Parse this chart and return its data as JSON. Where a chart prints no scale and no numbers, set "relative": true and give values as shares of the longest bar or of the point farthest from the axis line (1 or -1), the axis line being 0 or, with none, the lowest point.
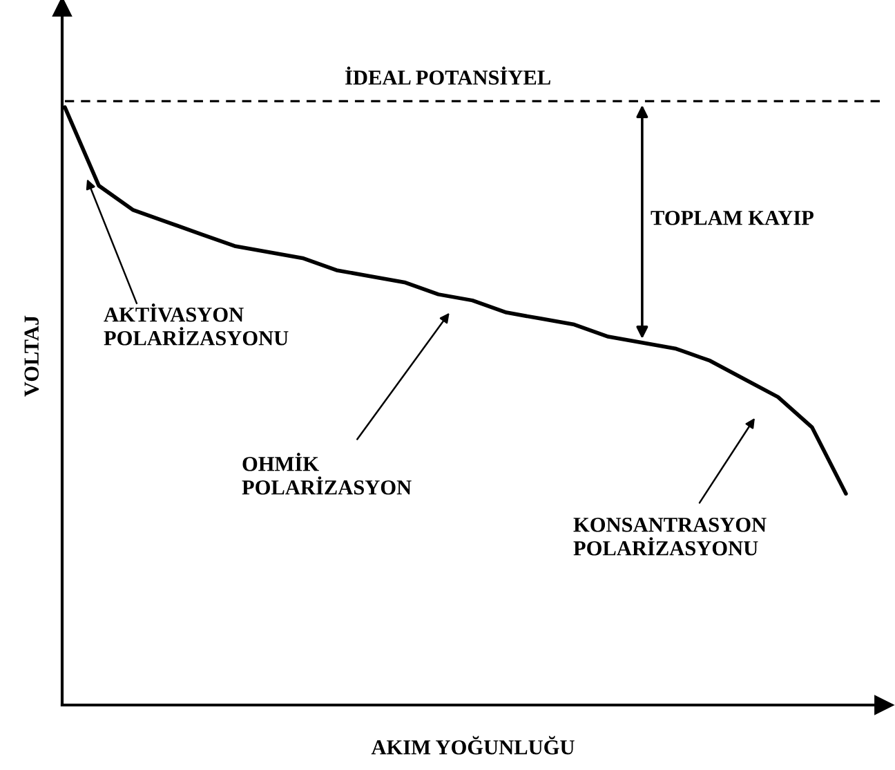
{
  "chart_data": {
    "type": "line",
    "relative": true,
    "xlabel": "AKIM YOĞUNLUĞU",
    "ylabel": "VOLTAJ",
    "categories": [
      null,
      null,
      null,
      null,
      null,
      null,
      null,
      null,
      null,
      null,
      null,
      null,
      null,
      null,
      null,
      null,
      null,
      null,
      null,
      null,
      null,
      null,
      null,
      null,
      null
    ],
    "series": [
      {
        "color": "#000000",
        "line_style": "solid",
        "values": [
          0.99,
          0.86,
          0.82,
          0.8,
          0.78,
          0.76,
          0.75,
          0.74,
          0.72,
          0.71,
          0.7,
          0.68,
          0.67,
          0.65,
          0.64,
          0.63,
          0.61,
          0.6,
          0.59,
          0.57,
          0.54,
          0.51,
          0.46,
          0.35,
          null
        ]
      },
      {
        "name": "İDEAL POTANSİYEL",
        "color": "#000000",
        "line_style": "dashed",
        "values": [
          1,
          1,
          1,
          1,
          1,
          1,
          1,
          1,
          1,
          1,
          1,
          1,
          1,
          1,
          1,
          1,
          1,
          1,
          1,
          1,
          1,
          1,
          1,
          1,
          1
        ]
      }
    ],
    "annotations": [
      "AKTİVASYON\nPOLARİZASYONU",
      "OHMİK\nPOLARİZASYON",
      "KONSANTRASYON\nPOLARİZASYONU",
      "TOPLAM KAYIP"
    ],
    "legend": false,
    "marker": "none"
  }
}
